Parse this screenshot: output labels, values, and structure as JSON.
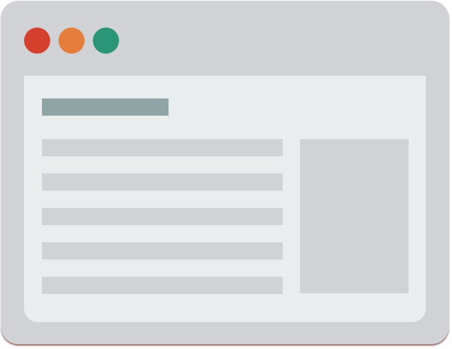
{
  "colors": {
    "frame": "#d1d2d6",
    "content_background": "#eaedee",
    "heading_placeholder": "#90a4a5",
    "line_placeholder": "#d1d2d6",
    "panel_placeholder": "#d1d2d6",
    "close_dot": "#d5402c",
    "minimize_dot": "#e67e3b",
    "maximize_dot": "#2a9577"
  },
  "window_controls": [
    {
      "name": "close",
      "icon": "red-circle-icon"
    },
    {
      "name": "minimize",
      "icon": "orange-circle-icon"
    },
    {
      "name": "maximize",
      "icon": "green-circle-icon"
    }
  ],
  "content": {
    "text_line_count": 5
  }
}
